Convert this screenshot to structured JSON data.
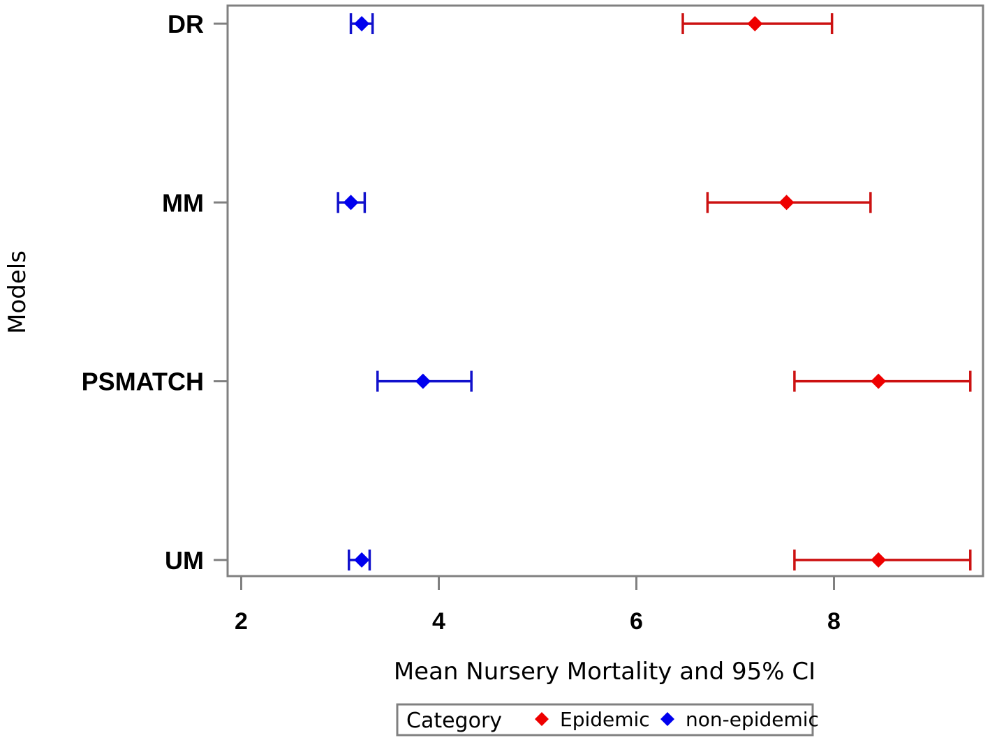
{
  "chart_data": {
    "type": "scatter",
    "subtype": "dot-plot-with-error-bars",
    "title": "",
    "xlabel": "Mean Nursery Mortality and 95% CI",
    "ylabel": "Models",
    "xlim": [
      1.75,
      9.5
    ],
    "xticks": [
      "2",
      "4",
      "6",
      "8"
    ],
    "xtick_values": [
      2,
      4,
      6,
      8
    ],
    "categories": [
      "DR",
      "MM",
      "PSMATCH",
      "UM"
    ],
    "grid": false,
    "legend": {
      "title": "Category",
      "position": "bottom",
      "entries": [
        "Epidemic",
        "non-epidemic"
      ]
    },
    "series": [
      {
        "name": "Epidemic",
        "color": "#ee0000",
        "errorbar_color": "#cc1111",
        "points": [
          {
            "model": "DR",
            "mean": 7.2,
            "lower": 6.47,
            "upper": 7.98
          },
          {
            "model": "MM",
            "mean": 7.52,
            "lower": 6.72,
            "upper": 8.37
          },
          {
            "model": "PSMATCH",
            "mean": 8.45,
            "lower": 7.6,
            "upper": 9.38
          },
          {
            "model": "UM",
            "mean": 8.45,
            "lower": 7.6,
            "upper": 9.38
          }
        ]
      },
      {
        "name": "non-epidemic",
        "color": "#0000ee",
        "errorbar_color": "#1111cc",
        "points": [
          {
            "model": "DR",
            "mean": 3.22,
            "lower": 3.11,
            "upper": 3.33
          },
          {
            "model": "MM",
            "mean": 3.11,
            "lower": 2.98,
            "upper": 3.25
          },
          {
            "model": "PSMATCH",
            "mean": 3.84,
            "lower": 3.38,
            "upper": 4.33
          },
          {
            "model": "UM",
            "mean": 3.22,
            "lower": 3.09,
            "upper": 3.3
          }
        ]
      }
    ]
  }
}
